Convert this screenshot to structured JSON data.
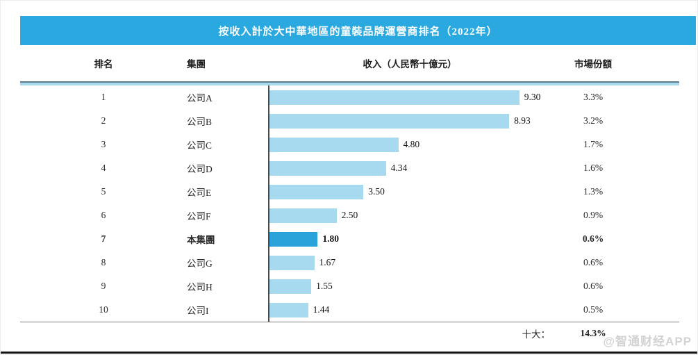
{
  "title": "按收入計於大中華地區的童裝品牌運營商排名（2022年）",
  "columns": {
    "rank": "排名",
    "group": "集團",
    "revenue": "收入（人民幣十億元）",
    "share": "市場份額"
  },
  "rows": [
    {
      "rank": "1",
      "group": "公司A",
      "value": 9.3,
      "value_label": "9.30",
      "share": "3.3%",
      "highlight": false
    },
    {
      "rank": "2",
      "group": "公司B",
      "value": 8.93,
      "value_label": "8.93",
      "share": "3.2%",
      "highlight": false
    },
    {
      "rank": "3",
      "group": "公司C",
      "value": 4.8,
      "value_label": "4.80",
      "share": "1.7%",
      "highlight": false
    },
    {
      "rank": "4",
      "group": "公司D",
      "value": 4.34,
      "value_label": "4.34",
      "share": "1.6%",
      "highlight": false
    },
    {
      "rank": "5",
      "group": "公司E",
      "value": 3.5,
      "value_label": "3.50",
      "share": "1.3%",
      "highlight": false
    },
    {
      "rank": "6",
      "group": "公司F",
      "value": 2.5,
      "value_label": "2.50",
      "share": "0.9%",
      "highlight": false
    },
    {
      "rank": "7",
      "group": "本集團",
      "value": 1.8,
      "value_label": "1.80",
      "share": "0.6%",
      "highlight": true
    },
    {
      "rank": "8",
      "group": "公司G",
      "value": 1.67,
      "value_label": "1.67",
      "share": "0.6%",
      "highlight": false
    },
    {
      "rank": "9",
      "group": "公司H",
      "value": 1.55,
      "value_label": "1.55",
      "share": "0.6%",
      "highlight": false
    },
    {
      "rank": "10",
      "group": "公司I",
      "value": 1.44,
      "value_label": "1.44",
      "share": "0.5%",
      "highlight": false
    }
  ],
  "footer": {
    "label": "十大：",
    "value": "14.3%"
  },
  "watermark": "@智通财经APP",
  "colors": {
    "header_bg": "#29a9e0",
    "bar": "#a7d9ef",
    "bar_highlight": "#2aa2da",
    "divider_light": "#a8d8ee",
    "divider_dark": "#5d7d8c"
  },
  "chart_data": {
    "type": "bar",
    "orientation": "horizontal",
    "title": "按收入計於大中華地區的童裝品牌運營商排名（2022年）",
    "categories": [
      "公司A",
      "公司B",
      "公司C",
      "公司D",
      "公司E",
      "公司F",
      "本集團",
      "公司G",
      "公司H",
      "公司I"
    ],
    "ranks": [
      1,
      2,
      3,
      4,
      5,
      6,
      7,
      8,
      9,
      10
    ],
    "values": [
      9.3,
      8.93,
      4.8,
      4.34,
      3.5,
      2.5,
      1.8,
      1.67,
      1.55,
      1.44
    ],
    "market_share_pct": [
      3.3,
      3.2,
      1.7,
      1.6,
      1.3,
      0.9,
      0.6,
      0.6,
      0.6,
      0.5
    ],
    "xlabel": "收入（人民幣十億元）",
    "share_label": "市場份額",
    "total_label": "十大：",
    "total_share_pct": 14.3,
    "highlight_index": 6,
    "xlim": [
      0,
      10.5
    ],
    "grid": false,
    "legend": false
  }
}
